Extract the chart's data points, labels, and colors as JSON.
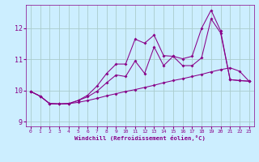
{
  "xlabel": "Windchill (Refroidissement éolien,°C)",
  "bg_color": "#cceeff",
  "grid_color": "#aacccc",
  "line_color": "#880088",
  "xlim": [
    -0.5,
    23.5
  ],
  "ylim": [
    8.85,
    12.75
  ],
  "xticks": [
    0,
    1,
    2,
    3,
    4,
    5,
    6,
    7,
    8,
    9,
    10,
    11,
    12,
    13,
    14,
    15,
    16,
    17,
    18,
    19,
    20,
    21,
    22,
    23
  ],
  "yticks": [
    9,
    10,
    11,
    12
  ],
  "line1_x": [
    0,
    1,
    2,
    3,
    4,
    5,
    6,
    7,
    8,
    9,
    10,
    11,
    12,
    13,
    14,
    15,
    16,
    17,
    18,
    19,
    20,
    21,
    22,
    23
  ],
  "line1_y": [
    9.97,
    9.82,
    9.58,
    9.57,
    9.58,
    9.62,
    9.68,
    9.75,
    9.83,
    9.9,
    9.97,
    10.03,
    10.1,
    10.17,
    10.25,
    10.32,
    10.38,
    10.45,
    10.52,
    10.6,
    10.67,
    10.73,
    10.62,
    10.3
  ],
  "line2_x": [
    0,
    1,
    2,
    3,
    4,
    5,
    6,
    7,
    8,
    9,
    10,
    11,
    12,
    13,
    14,
    15,
    16,
    17,
    18,
    19,
    20,
    21,
    22,
    23
  ],
  "line2_y": [
    9.97,
    9.82,
    9.58,
    9.57,
    9.58,
    9.68,
    9.8,
    9.98,
    10.25,
    10.5,
    10.45,
    10.95,
    10.55,
    11.4,
    10.8,
    11.1,
    10.8,
    10.8,
    11.05,
    12.3,
    11.85,
    10.35,
    10.32,
    10.3
  ],
  "line3_x": [
    0,
    1,
    2,
    3,
    4,
    5,
    6,
    7,
    8,
    9,
    10,
    11,
    12,
    13,
    14,
    15,
    16,
    17,
    18,
    19,
    20,
    21,
    22,
    23
  ],
  "line3_y": [
    9.97,
    9.82,
    9.58,
    9.57,
    9.58,
    9.68,
    9.85,
    10.15,
    10.55,
    10.85,
    10.85,
    11.65,
    11.52,
    11.78,
    11.12,
    11.1,
    11.02,
    11.1,
    12.0,
    12.58,
    11.92,
    10.35,
    10.32,
    10.3
  ]
}
